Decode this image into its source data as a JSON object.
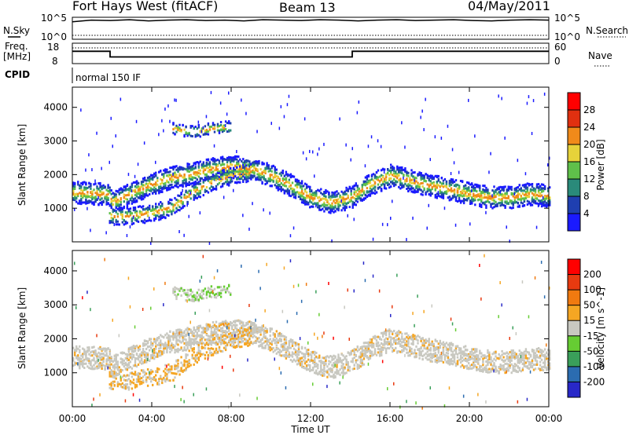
{
  "header": {
    "station": "Fort Hays West (fitACF)",
    "beam": "Beam 13",
    "date": "04/May/2011"
  },
  "noise_panel": {
    "left_label": "N.Sky",
    "right_label": "N.Search",
    "left_ticks": [
      "10^5",
      "10^0"
    ],
    "right_ticks": [
      "10^5",
      "10^0"
    ],
    "sky_series": [
      4.1,
      4.5,
      4.4,
      4.6,
      4.3,
      4.5,
      4.6,
      4.4,
      4.5,
      4.3,
      4.6,
      4.5,
      4.4,
      4.6,
      4.5,
      4.3,
      4.5,
      4.6,
      4.4,
      4.5,
      4.6,
      4.4,
      4.3,
      4.5,
      4.6,
      4.5
    ],
    "search_level": 0
  },
  "freq_panel": {
    "left_label_1": "Freq.",
    "left_label_2": "[MHz]",
    "right_label": "Nave",
    "left_ticks": [
      "18",
      "8"
    ],
    "right_ticks": [
      "60",
      "0"
    ],
    "freq_steps": [
      [
        0,
        14.5
      ],
      [
        1.9,
        10.5
      ],
      [
        14.1,
        14.5
      ],
      [
        24,
        14.5
      ]
    ],
    "nave_level": 52
  },
  "cpid_panel": {
    "label": "CPID",
    "value": "normal 150 IF"
  },
  "chart_data": [
    {
      "type": "heatmap",
      "name": "power",
      "xlabel": "",
      "ylabel": "Slant Range [km]",
      "x_range_hours": [
        0,
        24
      ],
      "ylim": [
        0,
        4600
      ],
      "y_ticks": [
        "1000",
        "2000",
        "3000",
        "4000"
      ],
      "colorbar_label": "Power [dB]",
      "colorbar_ticks": [
        "4",
        "8",
        "12",
        "16",
        "20",
        "24",
        "28"
      ],
      "colorbar_colors": [
        "#1a1aff",
        "#1f3fb0",
        "#2a8a7a",
        "#5fc04a",
        "#e6d23a",
        "#f08a1a",
        "#e03010",
        "#ff0000"
      ],
      "main_band": [
        [
          0,
          1500
        ],
        [
          1.8,
          1450
        ],
        [
          2,
          1200
        ],
        [
          3,
          1500
        ],
        [
          4,
          1750
        ],
        [
          5,
          1950
        ],
        [
          6,
          2050
        ],
        [
          7,
          2200
        ],
        [
          8,
          2260
        ],
        [
          9,
          2200
        ],
        [
          10,
          2000
        ],
        [
          11,
          1700
        ],
        [
          12,
          1350
        ],
        [
          13,
          1200
        ],
        [
          14,
          1350
        ],
        [
          15,
          1750
        ],
        [
          16,
          2000
        ],
        [
          17,
          1850
        ],
        [
          18,
          1700
        ],
        [
          19,
          1600
        ],
        [
          20,
          1450
        ],
        [
          21,
          1350
        ],
        [
          22,
          1350
        ],
        [
          23,
          1450
        ],
        [
          24,
          1400
        ]
      ],
      "second_band": [
        [
          1.8,
          800
        ],
        [
          3,
          800
        ],
        [
          4,
          900
        ],
        [
          5,
          1050
        ],
        [
          6,
          1500
        ],
        [
          7,
          1800
        ],
        [
          8,
          2000
        ],
        [
          9,
          2100
        ]
      ],
      "upper_patch": [
        [
          5,
          3400
        ],
        [
          6,
          3300
        ],
        [
          7,
          3400
        ],
        [
          8,
          3450
        ]
      ]
    },
    {
      "type": "heatmap",
      "name": "velocity",
      "xlabel": "Time UT",
      "ylabel": "Slant Range [km]",
      "x_range_hours": [
        0,
        24
      ],
      "ylim": [
        0,
        4600
      ],
      "y_ticks": [
        "1000",
        "2000",
        "3000",
        "4000"
      ],
      "x_ticks": [
        "00:00",
        "04:00",
        "08:00",
        "12:00",
        "16:00",
        "20:00",
        "00:00"
      ],
      "colorbar_label": "Velocity [m s^-1]",
      "colorbar_ticks": [
        "200",
        "100",
        "50",
        "15",
        "-15",
        "-50",
        "-100",
        "-200"
      ],
      "colorbar_colors": [
        "#2828c8",
        "#2b6cb0",
        "#3a9f5a",
        "#66cc33",
        "#c8c8c0",
        "#f5a623",
        "#f07a10",
        "#e83a10",
        "#ff0000"
      ]
    }
  ]
}
